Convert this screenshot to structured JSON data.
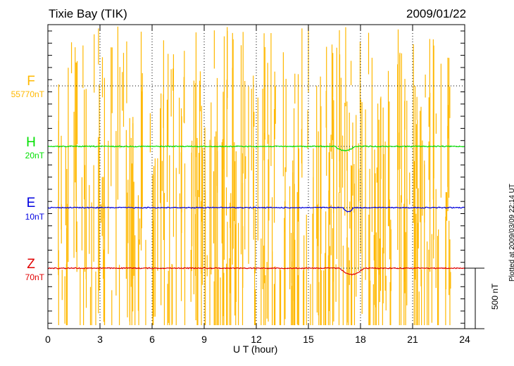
{
  "header": {
    "station": "Tixie Bay (TIK)",
    "date": "2009/01/22"
  },
  "footer": {
    "plotted": "Plotted at 2009/03/09 22:14 UT",
    "scale_bar": "500 nT"
  },
  "chart_data": {
    "type": "line",
    "title": "Tixie Bay (TIK)",
    "xlabel": "U T (hour)",
    "xlim": [
      0,
      24
    ],
    "xticks": [
      "0",
      "3",
      "6",
      "9",
      "12",
      "15",
      "18",
      "21",
      "24"
    ],
    "scale_bar_nT": 500,
    "series": [
      {
        "name": "F",
        "baseline_label": "55770nT",
        "color": "#FFB800",
        "note": "dense spikes across full range"
      },
      {
        "name": "H",
        "baseline_label": "20nT",
        "color": "#00E000",
        "dip_hours": [
          16.5,
          17.7
        ]
      },
      {
        "name": "E",
        "baseline_label": "10nT",
        "color": "#0000E0",
        "dip_hours": [
          17,
          17.6
        ]
      },
      {
        "name": "Z",
        "baseline_label": "70nT",
        "color": "#E00000",
        "dip_hours": [
          16.8,
          18.2
        ]
      }
    ]
  }
}
